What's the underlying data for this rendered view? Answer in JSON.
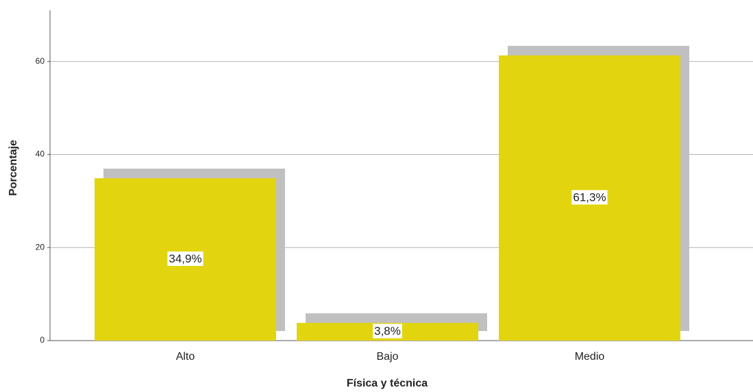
{
  "chart_data": {
    "type": "bar",
    "categories": [
      "Alto",
      "Bajo",
      "Medio"
    ],
    "values": [
      34.9,
      3.8,
      61.3
    ],
    "value_labels": [
      "34,9%",
      "3,8%",
      "61,3%"
    ],
    "color": "#e2d50f",
    "shadow_color": "#c0c0c0",
    "x_label": "Física y técnica",
    "y_label": "Porcentaje",
    "ylim": [
      0,
      71
    ],
    "yticks": [
      0,
      20,
      40,
      60
    ],
    "grid": true
  }
}
